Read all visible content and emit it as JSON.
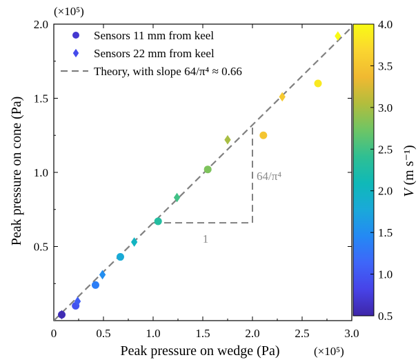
{
  "chart_data": {
    "type": "scatter",
    "xlabel": "Peak pressure on wedge (Pa)",
    "ylabel": "Peak pressure on cone (Pa)",
    "x_multiplier": "(×10⁵)",
    "y_multiplier": "(×10⁵)",
    "xlim": [
      0,
      3.0
    ],
    "ylim": [
      0,
      2.0
    ],
    "x_ticks": [
      "0",
      "0.5",
      "1.0",
      "1.5",
      "2.0",
      "2.5",
      "3.0"
    ],
    "y_ticks": [
      "0.5",
      "1.0",
      "1.5",
      "2.0"
    ],
    "grid": false,
    "legend_position": "top-left",
    "colorbar": {
      "label_var": "V",
      "label_units": "(m s⁻¹)",
      "range": [
        0.5,
        4.0
      ],
      "ticks": [
        "0.5",
        "1.0",
        "1.5",
        "2.0",
        "2.5",
        "3.0",
        "3.5",
        "4.0"
      ],
      "colormap": [
        "#3e26a8",
        "#4743e8",
        "#3e66f9",
        "#2489f4",
        "#1aa9d9",
        "#0fb9b8",
        "#2fbf93",
        "#6ec565",
        "#b2bd3d",
        "#f0b931",
        "#fad530",
        "#f9fb14"
      ]
    },
    "series": [
      {
        "name": "Sensors 11 mm from keel",
        "marker": "circle",
        "x": [
          0.08,
          0.22,
          0.42,
          0.67,
          1.05,
          1.55,
          2.11,
          2.66
        ],
        "y": [
          0.04,
          0.1,
          0.24,
          0.43,
          0.67,
          1.02,
          1.25,
          1.6
        ],
        "v": [
          0.6,
          0.95,
          1.35,
          1.8,
          2.3,
          2.8,
          3.5,
          3.85
        ]
      },
      {
        "name": "Sensors 22 mm from keel",
        "marker": "diamond",
        "x": [
          0.08,
          0.24,
          0.49,
          0.81,
          1.24,
          1.75,
          2.3,
          2.86
        ],
        "y": [
          0.04,
          0.13,
          0.31,
          0.53,
          0.83,
          1.22,
          1.51,
          1.92
        ],
        "v": [
          0.55,
          1.05,
          1.5,
          2.0,
          2.5,
          3.0,
          3.55,
          4.0
        ]
      }
    ],
    "theory_line": {
      "name": "Theory, with slope 64/π⁴ ≈ 0.66",
      "slope": 0.66
    },
    "slope_triangle": {
      "x_start": 1.0,
      "x_end": 2.0,
      "horizontal_label": "1",
      "vertical_label": "64/π⁴"
    }
  }
}
